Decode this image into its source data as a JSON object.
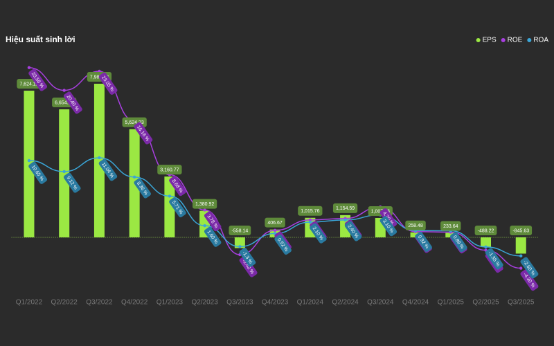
{
  "chart_data": {
    "type": "combo",
    "title": "Hiệu suất sinh lời",
    "categories": [
      "Q1/2022",
      "Q2/2022",
      "Q3/2022",
      "Q4/2022",
      "Q1/2023",
      "Q2/2023",
      "Q3/2023",
      "Q4/2023",
      "Q1/2024",
      "Q2/2024",
      "Q3/2024",
      "Q4/2024",
      "Q1/2025",
      "Q2/2025",
      "Q3/2025"
    ],
    "ylim": [
      -2950,
      9100
    ],
    "y2lim": [
      -7.9,
      24.3
    ],
    "series": [
      {
        "name": "EPS",
        "type": "bar",
        "color": "#9be843",
        "values": [
          7624.12,
          6654.2,
          7985.08,
          5624.33,
          3160.77,
          1380.92,
          -558.14,
          406.67,
          1015.76,
          1154.59,
          1007.03,
          258.48,
          233.64,
          -488.22,
          -845.63
        ],
        "value_labels": [
          "7,624.12",
          "6,654.20",
          "7,985.08",
          "5,624.33",
          "3,160.77",
          "1,380.92",
          "-558.14",
          "406.67",
          "1,015.76",
          "1,154.59",
          "1,007.03",
          "258.48",
          "233.64",
          "-488.22",
          "-845.63"
        ]
      },
      {
        "name": "ROE",
        "type": "line",
        "axis": "y2",
        "color": "#a83fe0",
        "values": [
          23.56,
          20.4,
          23.05,
          16.16,
          8.68,
          3.78,
          -2.42,
          0.96,
          2.4,
          2.6,
          4.2,
          0.77,
          0.7,
          -1.8,
          -4.3
        ],
        "value_labels": [
          "23.56 %",
          "20.40 %",
          "23.05 %",
          "16.16 %",
          "8.68 %",
          "3.78 %",
          "-2.42 %",
          "0.96 %",
          "2.40 %",
          "2.60 %",
          "4.20 %",
          "0.77 %",
          "0.70 %",
          "-1.80 %",
          "-4.30 %"
        ]
      },
      {
        "name": "ROA",
        "type": "line",
        "axis": "y2",
        "color": "#3aa6d8",
        "values": [
          10.65,
          9.12,
          11.04,
          8.36,
          5.71,
          1.6,
          -1.3,
          0.52,
          2.1,
          2.4,
          3.1,
          0.92,
          0.89,
          -1.35,
          -2.6
        ],
        "value_labels": [
          "10.65 %",
          "9.12 %",
          "11.04 %",
          "8.36 %",
          "5.71 %",
          "1.60 %",
          "-1.3 %",
          "0.52 %",
          "2.10 %",
          "2.40 %",
          "3.10 %",
          "0.92 %",
          "0.89 %",
          "-1.35 %",
          "-2.60 %"
        ]
      }
    ]
  }
}
